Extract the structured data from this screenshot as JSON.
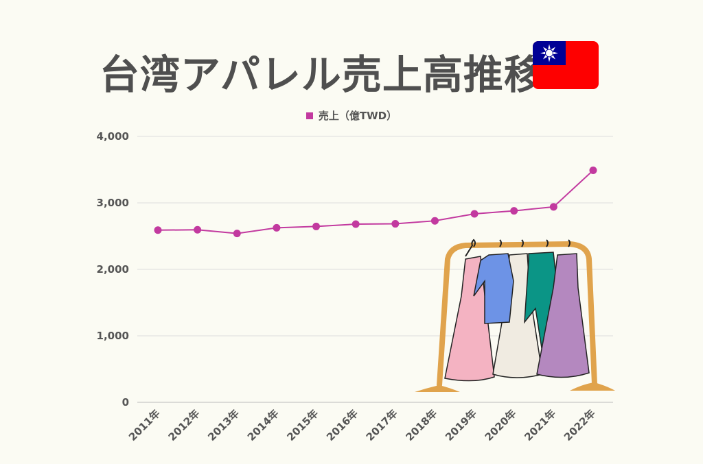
{
  "title": "台湾アパレル売上高推移",
  "colors": {
    "line": "#c2399f",
    "grid": "#dddddd",
    "text": "#4f4f4f",
    "flag_red": "#fe0000",
    "flag_blue": "#000095"
  },
  "icons": {
    "flag": "taiwan-flag-icon",
    "illustration": "clothing-rack-icon"
  },
  "chart_data": {
    "type": "line",
    "title": "台湾アパレル売上高推移",
    "categories": [
      "2011年",
      "2012年",
      "2013年",
      "2014年",
      "2015年",
      "2016年",
      "2017年",
      "2018年",
      "2019年",
      "2020年",
      "2021年",
      "2022年"
    ],
    "series": [
      {
        "name": "売上（億TWD）",
        "values": [
          2590,
          2595,
          2540,
          2625,
          2645,
          2680,
          2685,
          2730,
          2835,
          2880,
          2940,
          3490
        ]
      }
    ],
    "y_ticks": [
      "0",
      "1,000",
      "2,000",
      "3,000",
      "4,000"
    ],
    "ylim": [
      0,
      4000
    ],
    "grid": true,
    "legend": "top-center"
  }
}
